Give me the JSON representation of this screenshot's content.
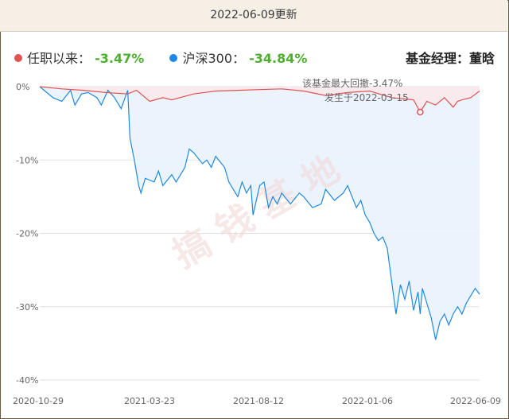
{
  "header": {
    "title": "2022-06-09更新"
  },
  "legend": {
    "items": [
      {
        "label": "任职以来：",
        "value": "-3.47%",
        "color": "#e15252"
      },
      {
        "label": "沪深300：",
        "value": "-34.84%",
        "color": "#1e88e5"
      }
    ],
    "manager": "基金经理：董晗"
  },
  "annotation": {
    "line1": "该基金最大回撤-3.47%",
    "line2": "发生于2022-03-15"
  },
  "watermark": "搞 钱 基 地",
  "colors": {
    "fund": "#e15252",
    "index": "#1e88e5",
    "fund_fill": "#fbe9ec",
    "index_fill": "#e9f3fd",
    "grid": "#e0e0e0"
  },
  "chart_data": {
    "type": "area",
    "ylim": [
      -40,
      0
    ],
    "yticks": [
      "0%",
      "-10%",
      "-20%",
      "-30%",
      "-40%"
    ],
    "xticks": [
      "2020-10-29",
      "2021-03-23",
      "2021-08-12",
      "2022-01-06",
      "2022-06-09"
    ],
    "x_index_range": [
      0,
      100
    ],
    "series": [
      {
        "name": "任职以来",
        "x": [
          0,
          5,
          10,
          15,
          20,
          22,
          25,
          28,
          30,
          35,
          40,
          45,
          50,
          55,
          60,
          65,
          70,
          75,
          80,
          85,
          86.5,
          88,
          90,
          92,
          94,
          95,
          96,
          98,
          100
        ],
        "values": [
          0,
          -0.3,
          -0.5,
          -0.8,
          -1.0,
          -0.5,
          -2.0,
          -1.5,
          -1.8,
          -1.0,
          -0.6,
          -0.5,
          -0.4,
          -0.3,
          -0.6,
          -1.2,
          -0.8,
          -0.6,
          -1.5,
          -1.8,
          -3.47,
          -2.0,
          -2.5,
          -1.5,
          -2.8,
          -2.0,
          -1.8,
          -1.5,
          -0.6
        ]
      },
      {
        "name": "沪深300",
        "x": [
          0,
          3,
          5,
          7,
          8,
          9.5,
          11,
          13,
          14,
          15.5,
          17,
          18.5,
          20,
          20.5,
          21.5,
          22.5,
          23,
          24,
          26,
          27,
          28,
          30,
          31,
          33,
          34,
          35,
          37,
          38,
          39,
          40,
          42,
          43,
          45,
          46,
          47,
          48,
          48.5,
          50,
          51,
          52,
          53,
          54,
          55,
          57,
          59,
          60,
          62,
          64,
          65,
          67,
          69,
          70,
          72,
          73,
          74,
          75,
          76,
          77,
          78,
          79,
          80,
          81,
          82,
          83,
          84,
          85,
          86,
          86.5,
          87,
          88,
          89,
          90,
          91,
          92,
          93,
          94,
          95,
          96,
          97,
          98,
          99,
          100
        ],
        "values": [
          0,
          -1.5,
          -2.0,
          -0.5,
          -2.5,
          -1.0,
          -0.8,
          -1.5,
          -2.5,
          -0.5,
          -1.5,
          -3.0,
          -0.5,
          -7.0,
          -10.0,
          -13.5,
          -14.5,
          -12.5,
          -13.0,
          -11.5,
          -13.5,
          -12.0,
          -13.0,
          -11.0,
          -8.5,
          -9.0,
          -10.5,
          -10.0,
          -11.0,
          -9.5,
          -11.0,
          -13.0,
          -15.0,
          -13.0,
          -14.5,
          -13.5,
          -17.5,
          -13.5,
          -13.0,
          -16.5,
          -15.0,
          -16.0,
          -14.5,
          -16.0,
          -14.5,
          -15.0,
          -16.5,
          -16.0,
          -14.0,
          -15.5,
          -14.5,
          -13.5,
          -16.5,
          -15.5,
          -17.5,
          -18.5,
          -20.0,
          -21.0,
          -20.5,
          -22.0,
          -26.5,
          -31.0,
          -27.0,
          -29.0,
          -26.5,
          -30.5,
          -28.0,
          -31.0,
          -27.5,
          -29.5,
          -31.5,
          -34.5,
          -32.0,
          -31.0,
          -32.5,
          -31.0,
          -30.0,
          -31.0,
          -29.5,
          -28.5,
          -27.5,
          -28.3
        ]
      }
    ]
  }
}
